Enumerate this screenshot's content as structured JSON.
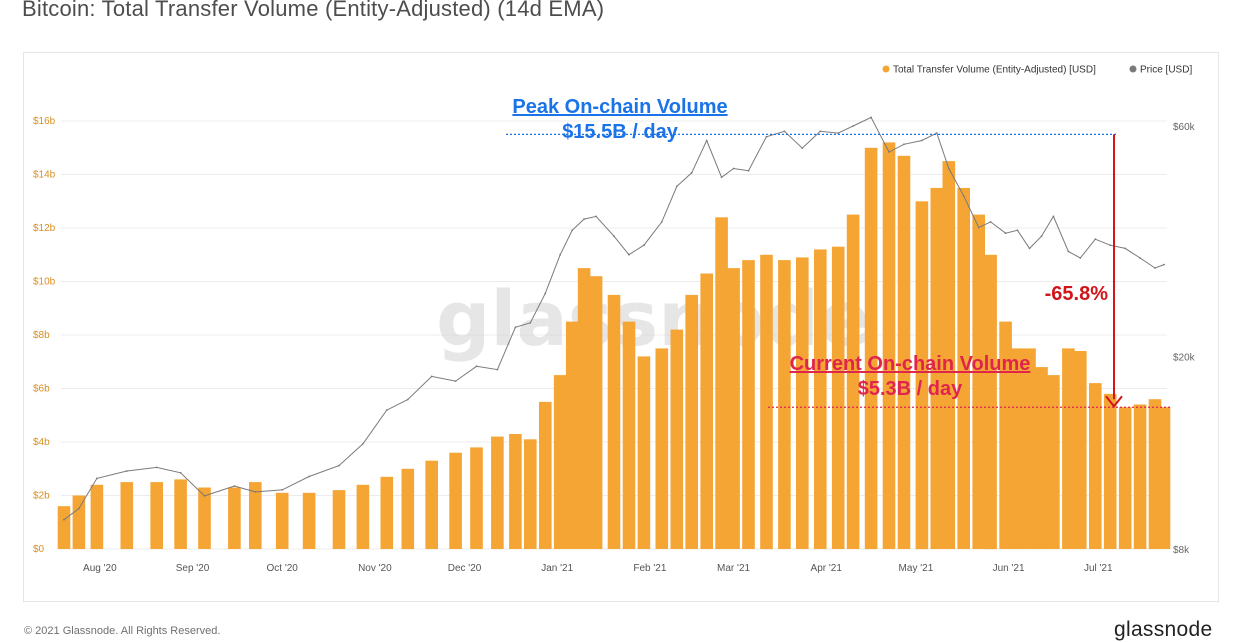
{
  "page": {
    "title": "Bitcoin: Total Transfer Volume (Entity-Adjusted) (14d EMA)",
    "copyright": "© 2021 Glassnode. All Rights Reserved.",
    "brand": "glassnode",
    "watermark": "glassnode"
  },
  "colors": {
    "volume": "#f5a534",
    "volume_axis": "#d98f22",
    "price": "#7a7a7a",
    "peak": "#1a73e8",
    "current": "#e0254d",
    "drop": "#d0161b"
  },
  "chart_data": {
    "type": "bar",
    "title": "Bitcoin: Total Transfer Volume (Entity-Adjusted) (14d EMA)",
    "x_range": [
      "2020-07-19",
      "2021-07-24"
    ],
    "x_ticks": [
      "Aug '20",
      "Sep '20",
      "Oct '20",
      "Nov '20",
      "Dec '20",
      "Jan '21",
      "Feb '21",
      "Mar '21",
      "Apr '21",
      "May '21",
      "Jun '21",
      "Jul '21"
    ],
    "x_tick_dates": [
      "2020-08-01",
      "2020-09-01",
      "2020-10-01",
      "2020-11-01",
      "2020-12-01",
      "2021-01-01",
      "2021-02-01",
      "2021-03-01",
      "2021-04-01",
      "2021-05-01",
      "2021-06-01",
      "2021-07-01"
    ],
    "y_left": {
      "ticks": [
        "$0",
        "$2b",
        "$4b",
        "$6b",
        "$8b",
        "$10b",
        "$12b",
        "$14b",
        "$16b"
      ],
      "range_billion_usd": [
        0,
        16
      ]
    },
    "y_right": {
      "ticks": [
        "$8k",
        "$20k",
        "$60k"
      ],
      "tick_values_usd": [
        8000,
        20000,
        60000
      ],
      "scale": "log"
    },
    "legend": {
      "position": "top-right",
      "entries": [
        "Total Transfer Volume (Entity-Adjusted) [USD]",
        "Price [USD]"
      ]
    },
    "grid": true,
    "series": [
      {
        "name": "Total Transfer Volume (Entity-Adjusted) [USD]",
        "type": "bar",
        "unit": "billion USD",
        "points": [
          [
            "2020-07-20",
            1.6
          ],
          [
            "2020-07-25",
            2.0
          ],
          [
            "2020-07-31",
            2.4
          ],
          [
            "2020-08-10",
            2.5
          ],
          [
            "2020-08-20",
            2.5
          ],
          [
            "2020-08-28",
            2.6
          ],
          [
            "2020-09-05",
            2.3
          ],
          [
            "2020-09-15",
            2.3
          ],
          [
            "2020-09-22",
            2.5
          ],
          [
            "2020-10-01",
            2.1
          ],
          [
            "2020-10-10",
            2.1
          ],
          [
            "2020-10-20",
            2.2
          ],
          [
            "2020-10-28",
            2.4
          ],
          [
            "2020-11-05",
            2.7
          ],
          [
            "2020-11-12",
            3.0
          ],
          [
            "2020-11-20",
            3.3
          ],
          [
            "2020-11-28",
            3.6
          ],
          [
            "2020-12-05",
            3.8
          ],
          [
            "2020-12-12",
            4.2
          ],
          [
            "2020-12-18",
            4.3
          ],
          [
            "2020-12-23",
            4.1
          ],
          [
            "2020-12-28",
            5.5
          ],
          [
            "2021-01-02",
            6.5
          ],
          [
            "2021-01-06",
            8.5
          ],
          [
            "2021-01-10",
            10.5
          ],
          [
            "2021-01-14",
            10.2
          ],
          [
            "2021-01-20",
            9.5
          ],
          [
            "2021-01-25",
            8.5
          ],
          [
            "2021-01-30",
            7.2
          ],
          [
            "2021-02-05",
            7.5
          ],
          [
            "2021-02-10",
            8.2
          ],
          [
            "2021-02-15",
            9.5
          ],
          [
            "2021-02-20",
            10.3
          ],
          [
            "2021-02-25",
            12.4
          ],
          [
            "2021-03-01",
            10.5
          ],
          [
            "2021-03-06",
            10.8
          ],
          [
            "2021-03-12",
            11.0
          ],
          [
            "2021-03-18",
            10.8
          ],
          [
            "2021-03-24",
            10.9
          ],
          [
            "2021-03-30",
            11.2
          ],
          [
            "2021-04-05",
            11.3
          ],
          [
            "2021-04-10",
            12.5
          ],
          [
            "2021-04-16",
            15.0
          ],
          [
            "2021-04-22",
            15.2
          ],
          [
            "2021-04-27",
            14.7
          ],
          [
            "2021-05-03",
            13.0
          ],
          [
            "2021-05-08",
            13.5
          ],
          [
            "2021-05-12",
            14.5
          ],
          [
            "2021-05-17",
            13.5
          ],
          [
            "2021-05-22",
            12.5
          ],
          [
            "2021-05-26",
            11.0
          ],
          [
            "2021-05-31",
            8.5
          ],
          [
            "2021-06-04",
            7.5
          ],
          [
            "2021-06-08",
            7.5
          ],
          [
            "2021-06-12",
            6.8
          ],
          [
            "2021-06-16",
            6.5
          ],
          [
            "2021-06-21",
            7.5
          ],
          [
            "2021-06-25",
            7.4
          ],
          [
            "2021-06-30",
            6.2
          ],
          [
            "2021-07-05",
            5.8
          ],
          [
            "2021-07-10",
            5.3
          ],
          [
            "2021-07-15",
            5.4
          ],
          [
            "2021-07-20",
            5.6
          ],
          [
            "2021-07-23",
            5.3
          ]
        ]
      },
      {
        "name": "Price [USD]",
        "type": "line",
        "unit": "USD",
        "points": [
          [
            "2020-07-20",
            9200
          ],
          [
            "2020-07-25",
            9700
          ],
          [
            "2020-07-31",
            11200
          ],
          [
            "2020-08-10",
            11600
          ],
          [
            "2020-08-20",
            11800
          ],
          [
            "2020-08-28",
            11500
          ],
          [
            "2020-09-05",
            10300
          ],
          [
            "2020-09-15",
            10800
          ],
          [
            "2020-09-22",
            10500
          ],
          [
            "2020-10-01",
            10600
          ],
          [
            "2020-10-10",
            11300
          ],
          [
            "2020-10-20",
            11900
          ],
          [
            "2020-10-28",
            13200
          ],
          [
            "2020-11-05",
            15500
          ],
          [
            "2020-11-12",
            16300
          ],
          [
            "2020-11-20",
            18200
          ],
          [
            "2020-11-28",
            17800
          ],
          [
            "2020-12-05",
            19100
          ],
          [
            "2020-12-12",
            18800
          ],
          [
            "2020-12-18",
            23000
          ],
          [
            "2020-12-23",
            23500
          ],
          [
            "2020-12-28",
            27000
          ],
          [
            "2021-01-02",
            32500
          ],
          [
            "2021-01-06",
            36500
          ],
          [
            "2021-01-10",
            38500
          ],
          [
            "2021-01-14",
            39000
          ],
          [
            "2021-01-20",
            35500
          ],
          [
            "2021-01-25",
            32500
          ],
          [
            "2021-01-30",
            34000
          ],
          [
            "2021-02-05",
            38000
          ],
          [
            "2021-02-10",
            45000
          ],
          [
            "2021-02-15",
            48000
          ],
          [
            "2021-02-20",
            56000
          ],
          [
            "2021-02-25",
            47000
          ],
          [
            "2021-03-01",
            49000
          ],
          [
            "2021-03-06",
            48500
          ],
          [
            "2021-03-12",
            57000
          ],
          [
            "2021-03-18",
            58500
          ],
          [
            "2021-03-24",
            54000
          ],
          [
            "2021-03-30",
            58500
          ],
          [
            "2021-04-05",
            58000
          ],
          [
            "2021-04-10",
            60000
          ],
          [
            "2021-04-16",
            62500
          ],
          [
            "2021-04-22",
            53000
          ],
          [
            "2021-04-27",
            55000
          ],
          [
            "2021-05-03",
            56000
          ],
          [
            "2021-05-08",
            58000
          ],
          [
            "2021-05-12",
            49000
          ],
          [
            "2021-05-17",
            43000
          ],
          [
            "2021-05-22",
            37000
          ],
          [
            "2021-05-26",
            38000
          ],
          [
            "2021-05-31",
            36000
          ],
          [
            "2021-06-04",
            36500
          ],
          [
            "2021-06-08",
            33500
          ],
          [
            "2021-06-12",
            35500
          ],
          [
            "2021-06-16",
            39000
          ],
          [
            "2021-06-21",
            33000
          ],
          [
            "2021-06-25",
            32000
          ],
          [
            "2021-06-30",
            35000
          ],
          [
            "2021-07-05",
            34000
          ],
          [
            "2021-07-10",
            33500
          ],
          [
            "2021-07-15",
            32000
          ],
          [
            "2021-07-20",
            30500
          ],
          [
            "2021-07-23",
            31000
          ]
        ]
      }
    ],
    "annotations": {
      "peak_title": "Peak On-chain Volume",
      "peak_value": "$15.5B / day",
      "peak_level_billion_usd": 15.5,
      "current_title": "Current On-chain Volume",
      "current_value": "$5.3B / day",
      "current_level_billion_usd": 5.3,
      "drop": "-65.8%"
    }
  }
}
